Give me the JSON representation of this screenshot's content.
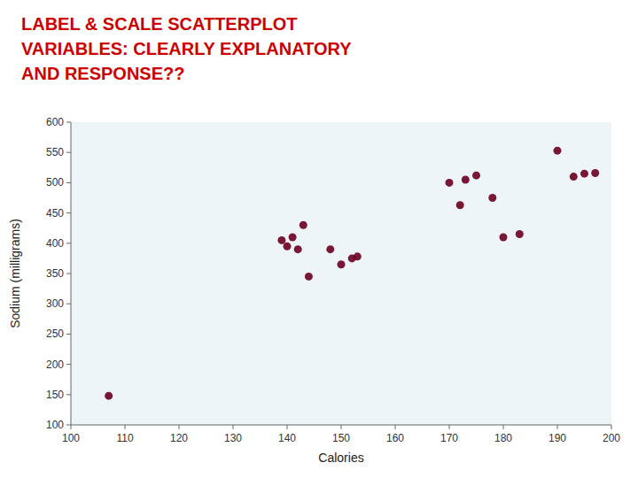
{
  "chart_data": {
    "type": "scatter",
    "title": [
      "LABEL & SCALE SCATTERPLOT",
      "VARIABLES:  CLEARLY EXPLANATORY",
      "AND RESPONSE??"
    ],
    "xlabel": "Calories",
    "ylabel": "Sodium (milligrams)",
    "x": [
      107,
      139,
      140,
      141,
      142,
      143,
      144,
      148,
      150,
      152,
      153,
      170,
      172,
      173,
      175,
      178,
      180,
      183,
      190,
      193,
      195,
      197
    ],
    "values": [
      148,
      405,
      395,
      410,
      390,
      430,
      345,
      390,
      365,
      375,
      378,
      500,
      463,
      505,
      512,
      475,
      410,
      415,
      553,
      510,
      515,
      516
    ],
    "color": "#6B0020",
    "xlim": [
      100,
      200
    ],
    "ylim": [
      100,
      600
    ],
    "xticks": [
      100,
      110,
      120,
      130,
      140,
      150,
      160,
      170,
      180,
      190,
      200
    ],
    "yticks": [
      100,
      150,
      200,
      250,
      300,
      350,
      400,
      450,
      500,
      550,
      600
    ],
    "grid": false
  }
}
